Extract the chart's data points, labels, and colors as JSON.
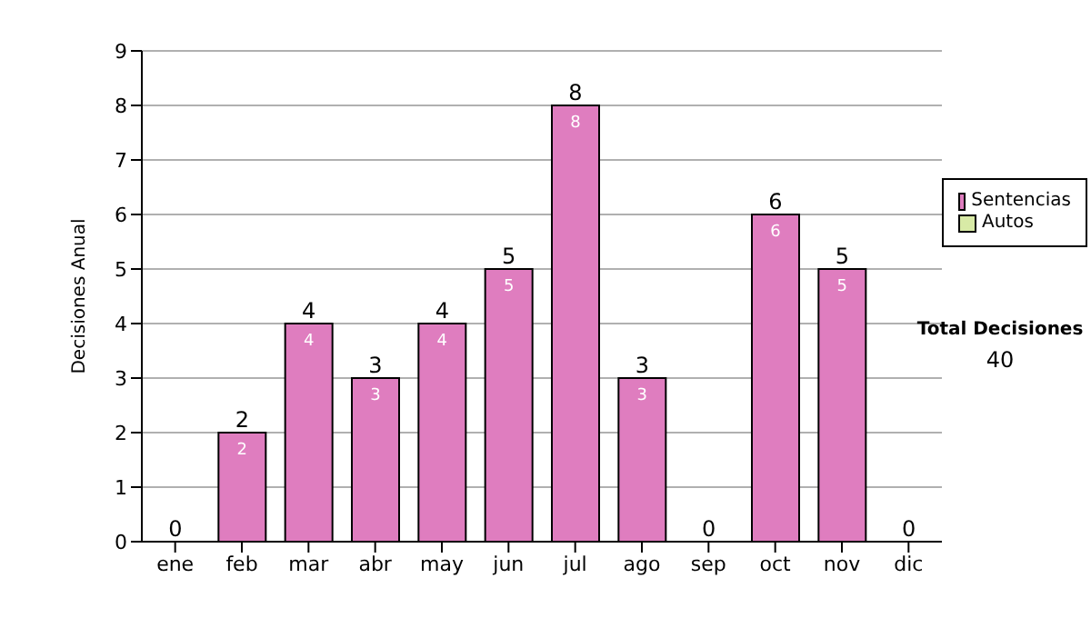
{
  "chart_data": {
    "type": "bar",
    "ylabel": "Decisiones Anual",
    "categories": [
      "ene",
      "feb",
      "mar",
      "abr",
      "may",
      "jun",
      "jul",
      "ago",
      "sep",
      "oct",
      "nov",
      "dic"
    ],
    "series": [
      {
        "name": "Sentencias",
        "color": "#df7dbf",
        "values": [
          0,
          2,
          4,
          3,
          4,
          5,
          8,
          3,
          0,
          6,
          5,
          0
        ],
        "value_labels": [
          null,
          "2",
          "4",
          "3",
          "4",
          "5",
          "8",
          "3",
          null,
          "6",
          "5",
          null
        ]
      },
      {
        "name": "Autos",
        "color": "#d8eaa6",
        "values": [
          0,
          0,
          0,
          0,
          0,
          0,
          0,
          0,
          0,
          0,
          0,
          0
        ]
      }
    ],
    "stacked": true,
    "totals": [
      "0",
      "2",
      "4",
      "3",
      "4",
      "5",
      "8",
      "3",
      "0",
      "6",
      "5",
      "0"
    ],
    "ylim": [
      0,
      9
    ],
    "yticks": [
      0,
      1,
      2,
      3,
      4,
      5,
      6,
      7,
      8,
      9
    ],
    "grid": "y",
    "legend": "right",
    "annotations": [
      "Total Decisiones",
      "40"
    ]
  }
}
